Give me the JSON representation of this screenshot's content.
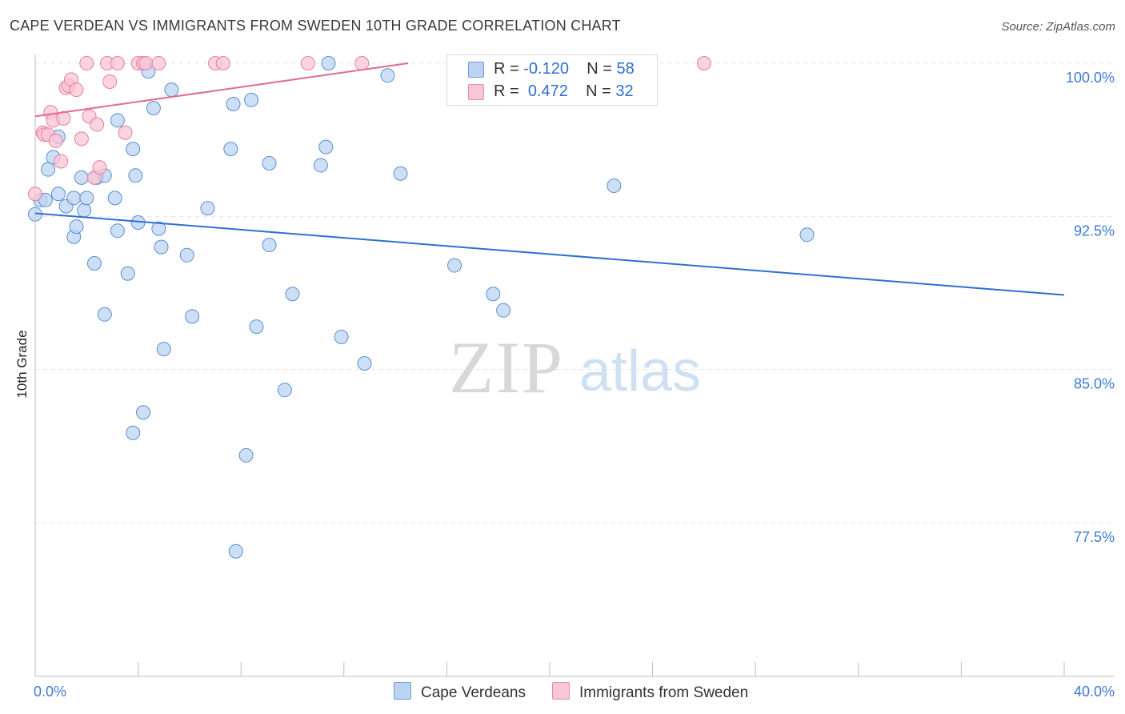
{
  "header": {
    "title": "CAPE VERDEAN VS IMMIGRANTS FROM SWEDEN 10TH GRADE CORRELATION CHART",
    "source": "Source: ZipAtlas.com"
  },
  "watermark": {
    "zip": "ZIP",
    "atlas": "atlas"
  },
  "legend": {
    "series1": {
      "r_label": "R =",
      "r_value": "-0.120",
      "n_label": "N =",
      "n_value": "58"
    },
    "series2": {
      "r_label": "R =",
      "r_value": "0.472",
      "n_label": "N =",
      "n_value": "32"
    }
  },
  "chart_data": {
    "type": "scatter",
    "title": "CAPE VERDEAN VS IMMIGRANTS FROM SWEDEN 10TH GRADE CORRELATION CHART",
    "xlabel": "",
    "ylabel": "10th Grade",
    "xlim": [
      0,
      40
    ],
    "ylim": [
      70.5,
      101.5
    ],
    "x_tick_labels": [
      "0.0%",
      "40.0%"
    ],
    "y_ticks": [
      77.5,
      85.0,
      92.5,
      100.0
    ],
    "y_tick_labels": [
      "77.5%",
      "85.0%",
      "92.5%",
      "100.0%"
    ],
    "colors": {
      "blue_fill": "#bcd4f2",
      "blue_stroke": "#5a8fd6",
      "blue_line": "#2f6fd0",
      "pink_fill": "#f9c6d5",
      "pink_stroke": "#e57fa0",
      "pink_line": "#e06a93",
      "tick_label": "#3d7bd4",
      "grid": "#e3e3e3"
    },
    "series": [
      {
        "name": "Cape Verdeans",
        "color": "#bcd4f2",
        "trend": {
          "x": [
            0,
            40
          ],
          "y": [
            92.65,
            88.65
          ]
        },
        "points": [
          [
            0.0,
            92.6
          ],
          [
            0.2,
            93.3
          ],
          [
            0.4,
            93.3
          ],
          [
            0.5,
            94.8
          ],
          [
            0.7,
            95.4
          ],
          [
            0.9,
            96.4
          ],
          [
            0.9,
            93.6
          ],
          [
            1.2,
            93.0
          ],
          [
            1.5,
            93.4
          ],
          [
            1.5,
            91.5
          ],
          [
            1.6,
            92.0
          ],
          [
            1.8,
            94.4
          ],
          [
            1.9,
            92.8
          ],
          [
            2.0,
            93.4
          ],
          [
            2.3,
            90.2
          ],
          [
            2.4,
            94.4
          ],
          [
            2.7,
            94.5
          ],
          [
            2.7,
            87.7
          ],
          [
            3.1,
            93.4
          ],
          [
            3.2,
            97.2
          ],
          [
            3.2,
            91.8
          ],
          [
            3.6,
            89.7
          ],
          [
            3.8,
            95.8
          ],
          [
            3.8,
            81.9
          ],
          [
            4.0,
            92.2
          ],
          [
            4.2,
            82.9
          ],
          [
            4.4,
            99.6
          ],
          [
            4.6,
            97.8
          ],
          [
            4.8,
            91.9
          ],
          [
            4.9,
            91.0
          ],
          [
            5.0,
            86.0
          ],
          [
            5.3,
            98.7
          ],
          [
            5.9,
            90.6
          ],
          [
            6.1,
            87.6
          ],
          [
            6.7,
            92.9
          ],
          [
            7.6,
            95.8
          ],
          [
            7.7,
            98.0
          ],
          [
            7.8,
            76.1
          ],
          [
            8.2,
            80.8
          ],
          [
            8.4,
            98.2
          ],
          [
            8.6,
            87.1
          ],
          [
            9.1,
            95.1
          ],
          [
            9.1,
            91.1
          ],
          [
            9.7,
            84.0
          ],
          [
            10.0,
            88.7
          ],
          [
            11.1,
            95.0
          ],
          [
            11.3,
            95.9
          ],
          [
            11.4,
            100.0
          ],
          [
            11.9,
            86.6
          ],
          [
            12.8,
            85.3
          ],
          [
            13.7,
            99.4
          ],
          [
            14.2,
            94.6
          ],
          [
            16.3,
            90.1
          ],
          [
            17.8,
            88.7
          ],
          [
            18.2,
            87.9
          ],
          [
            22.5,
            94.0
          ],
          [
            30.0,
            91.6
          ],
          [
            3.9,
            94.5
          ]
        ]
      },
      {
        "name": "Immigrants from Sweden",
        "color": "#f9c6d5",
        "trend": {
          "x": [
            0,
            14.5
          ],
          "y": [
            97.4,
            100.0
          ]
        },
        "points": [
          [
            0.0,
            93.6
          ],
          [
            0.3,
            96.6
          ],
          [
            0.35,
            96.5
          ],
          [
            0.5,
            96.5
          ],
          [
            0.6,
            97.6
          ],
          [
            0.7,
            97.2
          ],
          [
            0.8,
            96.2
          ],
          [
            1.0,
            95.2
          ],
          [
            1.1,
            97.3
          ],
          [
            1.2,
            98.8
          ],
          [
            1.3,
            98.9
          ],
          [
            1.4,
            99.2
          ],
          [
            1.6,
            98.7
          ],
          [
            1.8,
            96.3
          ],
          [
            2.0,
            100.0
          ],
          [
            2.1,
            97.4
          ],
          [
            2.3,
            94.4
          ],
          [
            2.4,
            97.0
          ],
          [
            2.5,
            94.9
          ],
          [
            2.8,
            100.0
          ],
          [
            2.9,
            99.1
          ],
          [
            3.2,
            100.0
          ],
          [
            3.5,
            96.6
          ],
          [
            4.0,
            100.0
          ],
          [
            4.2,
            100.0
          ],
          [
            4.3,
            100.0
          ],
          [
            4.8,
            100.0
          ],
          [
            7.0,
            100.0
          ],
          [
            7.3,
            100.0
          ],
          [
            10.6,
            100.0
          ],
          [
            12.7,
            100.0
          ],
          [
            26.0,
            100.0
          ]
        ]
      }
    ]
  },
  "bottom_legend": {
    "series1_label": "Cape Verdeans",
    "series2_label": "Immigrants from Sweden"
  }
}
